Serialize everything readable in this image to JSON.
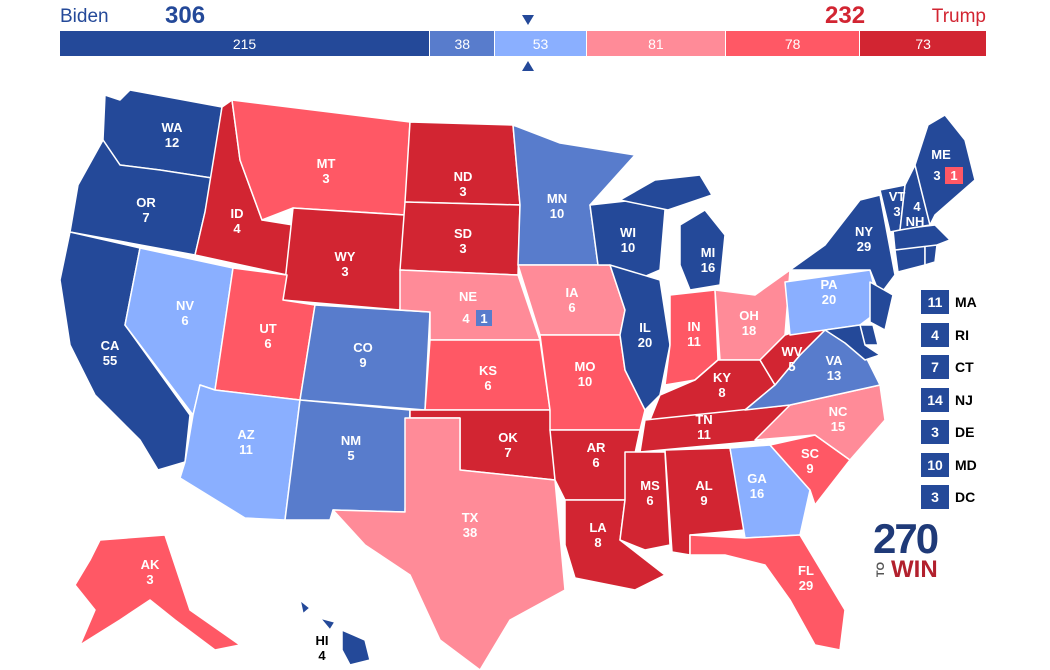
{
  "header": {
    "biden_name": "Biden",
    "biden_total": "306",
    "trump_name": "Trump",
    "trump_total": "232"
  },
  "bar": [
    {
      "value": 215,
      "label": "215",
      "color": "#244999"
    },
    {
      "value": 38,
      "label": "38",
      "color": "#587ccc"
    },
    {
      "value": 53,
      "label": "53",
      "color": "#8aafff"
    },
    {
      "value": 81,
      "label": "81",
      "color": "#ff8b98"
    },
    {
      "value": 78,
      "label": "78",
      "color": "#ff5865"
    },
    {
      "value": 73,
      "label": "73",
      "color": "#d22532"
    }
  ],
  "colors": {
    "safe_d": "#244999",
    "likely_d": "#587ccc",
    "lean_d": "#8aafff",
    "lean_r": "#ff8b98",
    "likely_r": "#ff5865",
    "safe_r": "#d22532"
  },
  "states": {
    "WA": {
      "abbr": "WA",
      "ev": "12"
    },
    "OR": {
      "abbr": "OR",
      "ev": "7"
    },
    "CA": {
      "abbr": "CA",
      "ev": "55"
    },
    "NV": {
      "abbr": "NV",
      "ev": "6"
    },
    "ID": {
      "abbr": "ID",
      "ev": "4"
    },
    "MT": {
      "abbr": "MT",
      "ev": "3"
    },
    "WY": {
      "abbr": "WY",
      "ev": "3"
    },
    "UT": {
      "abbr": "UT",
      "ev": "6"
    },
    "AZ": {
      "abbr": "AZ",
      "ev": "11"
    },
    "CO": {
      "abbr": "CO",
      "ev": "9"
    },
    "NM": {
      "abbr": "NM",
      "ev": "5"
    },
    "ND": {
      "abbr": "ND",
      "ev": "3"
    },
    "SD": {
      "abbr": "SD",
      "ev": "3"
    },
    "NE": {
      "abbr": "NE",
      "ev": "4",
      "ev2": "1"
    },
    "KS": {
      "abbr": "KS",
      "ev": "6"
    },
    "OK": {
      "abbr": "OK",
      "ev": "7"
    },
    "TX": {
      "abbr": "TX",
      "ev": "38"
    },
    "MN": {
      "abbr": "MN",
      "ev": "10"
    },
    "IA": {
      "abbr": "IA",
      "ev": "6"
    },
    "MO": {
      "abbr": "MO",
      "ev": "10"
    },
    "AR": {
      "abbr": "AR",
      "ev": "6"
    },
    "LA": {
      "abbr": "LA",
      "ev": "8"
    },
    "WI": {
      "abbr": "WI",
      "ev": "10"
    },
    "IL": {
      "abbr": "IL",
      "ev": "20"
    },
    "MI": {
      "abbr": "MI",
      "ev": "16"
    },
    "IN": {
      "abbr": "IN",
      "ev": "11"
    },
    "OH": {
      "abbr": "OH",
      "ev": "18"
    },
    "KY": {
      "abbr": "KY",
      "ev": "8"
    },
    "TN": {
      "abbr": "TN",
      "ev": "11"
    },
    "MS": {
      "abbr": "MS",
      "ev": "6"
    },
    "AL": {
      "abbr": "AL",
      "ev": "9"
    },
    "GA": {
      "abbr": "GA",
      "ev": "16"
    },
    "FL": {
      "abbr": "FL",
      "ev": "29"
    },
    "SC": {
      "abbr": "SC",
      "ev": "9"
    },
    "NC": {
      "abbr": "NC",
      "ev": "15"
    },
    "VA": {
      "abbr": "VA",
      "ev": "13"
    },
    "WV": {
      "abbr": "WV",
      "ev": "5"
    },
    "PA": {
      "abbr": "PA",
      "ev": "20"
    },
    "NY": {
      "abbr": "NY",
      "ev": "29"
    },
    "VT": {
      "abbr": "VT",
      "ev": "3"
    },
    "NH": {
      "abbr": "NH",
      "ev": "4"
    },
    "ME": {
      "abbr": "ME",
      "ev": "3",
      "ev2": "1"
    },
    "AK": {
      "abbr": "AK",
      "ev": "3"
    },
    "HI": {
      "abbr": "HI",
      "ev": "4"
    }
  },
  "small_states": [
    {
      "ev": "11",
      "abbr": "MA"
    },
    {
      "ev": "4",
      "abbr": "RI"
    },
    {
      "ev": "7",
      "abbr": "CT"
    },
    {
      "ev": "14",
      "abbr": "NJ"
    },
    {
      "ev": "3",
      "abbr": "DE"
    },
    {
      "ev": "10",
      "abbr": "MD"
    },
    {
      "ev": "3",
      "abbr": "DC"
    }
  ],
  "logo": {
    "number": "270",
    "to": "TO",
    "win": "WIN"
  }
}
